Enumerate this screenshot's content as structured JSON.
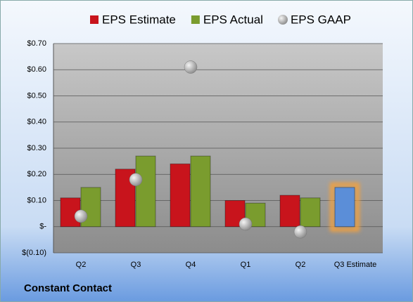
{
  "chart_data": {
    "type": "bar",
    "footer": "Constant Contact",
    "categories": [
      "Q2",
      "Q3",
      "Q4",
      "Q1",
      "Q2",
      "Q3 Estimate"
    ],
    "series": [
      {
        "name": "EPS Estimate",
        "color": "#c8141c",
        "colors": [
          "#c8141c",
          "#c8141c",
          "#c8141c",
          "#c8141c",
          "#c8141c",
          "#5b8ed8"
        ],
        "values": [
          0.11,
          0.22,
          0.24,
          0.1,
          0.12,
          0.15
        ]
      },
      {
        "name": "EPS Actual",
        "color": "#7a9c2e",
        "values": [
          0.15,
          0.27,
          0.27,
          0.09,
          0.11,
          null
        ]
      },
      {
        "name": "EPS GAAP",
        "color": "#a8a8a8",
        "marker": "ball",
        "values": [
          0.04,
          0.18,
          0.61,
          0.01,
          -0.02,
          null
        ]
      }
    ],
    "ylim": [
      -0.1,
      0.7
    ],
    "yticks": [
      {
        "value": -0.1,
        "label": "$(0.10)"
      },
      {
        "value": 0,
        "label": "$-"
      },
      {
        "value": 0.1,
        "label": "$0.10"
      },
      {
        "value": 0.2,
        "label": "$0.20"
      },
      {
        "value": 0.3,
        "label": "$0.30"
      },
      {
        "value": 0.4,
        "label": "$0.40"
      },
      {
        "value": 0.5,
        "label": "$0.50"
      },
      {
        "value": 0.6,
        "label": "$0.60"
      },
      {
        "value": 0.7,
        "label": "$0.70"
      }
    ],
    "grid": true
  }
}
